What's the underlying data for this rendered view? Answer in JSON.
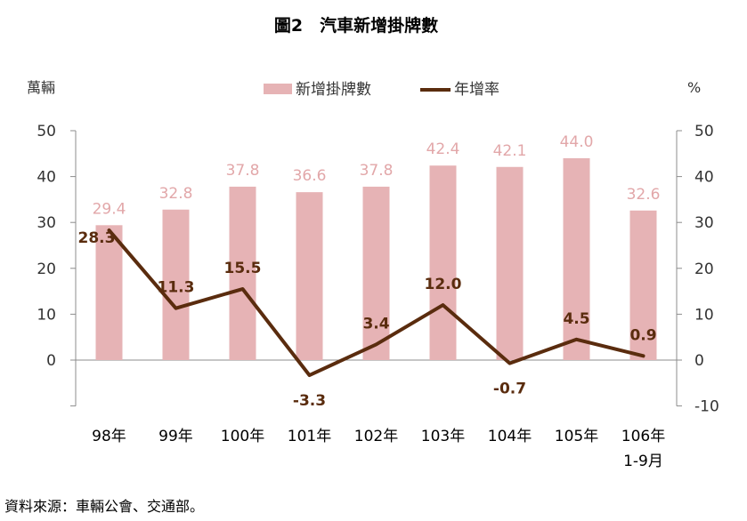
{
  "title": "圖2　汽車新增掛牌數",
  "source": "資料來源：車輛公會、交通部。",
  "chart_data": {
    "type": "bar",
    "categories": [
      "98年",
      "99年",
      "100年",
      "101年",
      "102年",
      "103年",
      "104年",
      "105年",
      "106年"
    ],
    "category_sublabels": [
      "",
      "",
      "",
      "",
      "",
      "",
      "",
      "",
      "1-9月"
    ],
    "series": [
      {
        "name": "新增掛牌數",
        "type": "bar",
        "axis": "left",
        "color": "#e6b3b5",
        "values": [
          29.4,
          32.8,
          37.8,
          36.6,
          37.8,
          42.4,
          42.1,
          44.0,
          32.6
        ],
        "labels": [
          "29.4",
          "32.8",
          "37.8",
          "36.6",
          "37.8",
          "42.4",
          "42.1",
          "44.0",
          "32.6"
        ]
      },
      {
        "name": "年增率",
        "type": "line",
        "axis": "right",
        "color": "#5a2c0e",
        "values": [
          28.3,
          11.3,
          15.5,
          -3.3,
          3.4,
          12.0,
          -0.7,
          4.5,
          0.9
        ],
        "labels": [
          "28.3",
          "11.3",
          "15.5",
          "-3.3",
          "3.4",
          "12.0",
          "-0.7",
          "4.5",
          "0.9"
        ]
      }
    ],
    "y_left": {
      "unit": "萬輛",
      "ticks": [
        "50",
        "40",
        "30",
        "20",
        "10",
        "0"
      ],
      "ylim": [
        -10,
        50
      ]
    },
    "y_right": {
      "unit": "%",
      "ticks": [
        "50",
        "40",
        "30",
        "20",
        "10",
        "0",
        "-10"
      ],
      "ylim": [
        -10,
        50
      ]
    },
    "bar_label_color": "#e2a7a9",
    "line_label_color": "#5a2c0e",
    "grid": false,
    "legend_position": "top"
  }
}
